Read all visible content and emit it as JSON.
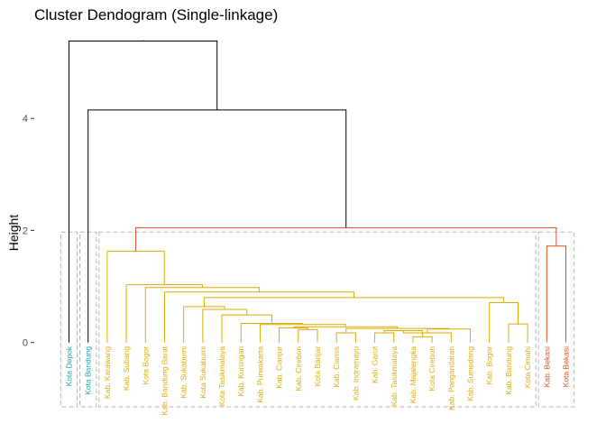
{
  "chart_data": {
    "type": "dendrogram",
    "title": "Cluster Dendogram (Single-linkage)",
    "xlabel": "",
    "ylabel": "Height",
    "ylim": [
      -1.15,
      5.55
    ],
    "y_ticks": [
      0,
      2,
      4
    ],
    "grid": false,
    "leaves": [
      {
        "label": "Kota Depok",
        "group": "A"
      },
      {
        "label": "Kota Bandung",
        "group": "A"
      },
      {
        "label": "Kab. Karawang",
        "group": "C"
      },
      {
        "label": "Kab. Subang",
        "group": "C"
      },
      {
        "label": "Kota Bogor",
        "group": "C"
      },
      {
        "label": "Kab. Bandung Barat",
        "group": "C"
      },
      {
        "label": "Kab. Sukabumi",
        "group": "C"
      },
      {
        "label": "Kota Sukabumi",
        "group": "C"
      },
      {
        "label": "Kota Tasikmalaya",
        "group": "C"
      },
      {
        "label": "Kab. Kuningan",
        "group": "C"
      },
      {
        "label": "Kab. Purwakarta",
        "group": "C"
      },
      {
        "label": "Kab. Cianjur",
        "group": "C"
      },
      {
        "label": "Kab. Cirebon",
        "group": "C"
      },
      {
        "label": "Kota Banjar",
        "group": "C"
      },
      {
        "label": "Kab. Ciamis",
        "group": "C"
      },
      {
        "label": "Kab. Indramayu",
        "group": "C"
      },
      {
        "label": "Kab. Garut",
        "group": "C"
      },
      {
        "label": "Kab. Tasikmalaya",
        "group": "C"
      },
      {
        "label": "Kab. Majalengka",
        "group": "C"
      },
      {
        "label": "Kota Cirebon",
        "group": "C"
      },
      {
        "label": "Kab. Pangandaran",
        "group": "C"
      },
      {
        "label": "Kab. Sumedang",
        "group": "C"
      },
      {
        "label": "Kab. Bogor",
        "group": "C"
      },
      {
        "label": "Kab. Bandung",
        "group": "C"
      },
      {
        "label": "Kota Cimahi",
        "group": "C"
      },
      {
        "label": "Kab. Bekasi",
        "group": "D"
      },
      {
        "label": "Kota Bekasi",
        "group": "D"
      }
    ],
    "merges": [
      {
        "id": "m1",
        "left": "Kab. Ciamis",
        "right": "Kab. Indramayu",
        "height": 0.17,
        "group": "C"
      },
      {
        "id": "m2",
        "left": "Kab. Majalengka",
        "right": "Kota Cirebon",
        "height": 0.1,
        "group": "C"
      },
      {
        "id": "m3",
        "left": "Kab. Garut",
        "right": "Kab. Tasikmalaya",
        "height": 0.17,
        "group": "C"
      },
      {
        "id": "m4",
        "left": "m3",
        "right": "m2",
        "height": 0.21,
        "group": "C"
      },
      {
        "id": "m5",
        "left": "m4",
        "right": "Kab. Pangandaran",
        "height": 0.17,
        "group": "C"
      },
      {
        "id": "m6",
        "left": "m5",
        "right": "Kab. Sumedang",
        "height": 0.24,
        "group": "C"
      },
      {
        "id": "m7",
        "left": "m1",
        "right": "m6",
        "height": 0.25,
        "group": "C"
      },
      {
        "id": "m8",
        "left": "Kab. Cirebon",
        "right": "Kota Banjar",
        "height": 0.23,
        "group": "C"
      },
      {
        "id": "m9",
        "left": "Kab. Cianjur",
        "right": "m8",
        "height": 0.26,
        "group": "C"
      },
      {
        "id": "m10",
        "left": "m9",
        "right": "m7",
        "height": 0.28,
        "group": "C"
      },
      {
        "id": "m11",
        "left": "Kab. Purwakarta",
        "right": "m10",
        "height": 0.32,
        "group": "C"
      },
      {
        "id": "m12",
        "left": "Kab. Kuningan",
        "right": "m11",
        "height": 0.34,
        "group": "C"
      },
      {
        "id": "m13",
        "left": "Kota Tasikmalaya",
        "right": "m12",
        "height": 0.49,
        "group": "C"
      },
      {
        "id": "m14",
        "left": "Kota Sukabumi",
        "right": "m13",
        "height": 0.59,
        "group": "C"
      },
      {
        "id": "m15",
        "left": "Kab. Sukabumi",
        "right": "m14",
        "height": 0.64,
        "group": "C"
      },
      {
        "id": "m16",
        "left": "Kab. Bandung",
        "right": "Kota Cimahi",
        "height": 0.33,
        "group": "C"
      },
      {
        "id": "m17",
        "left": "Kab. Bogor",
        "right": "m16",
        "height": 0.71,
        "group": "C"
      },
      {
        "id": "m18",
        "left": "m15",
        "right": "m17",
        "height": 0.8,
        "group": "C"
      },
      {
        "id": "m19",
        "left": "Kab. Bandung Barat",
        "right": "m18",
        "height": 0.9,
        "group": "C"
      },
      {
        "id": "m20",
        "left": "Kota Bogor",
        "right": "m19",
        "height": 0.98,
        "group": "C"
      },
      {
        "id": "m21",
        "left": "Kab. Subang",
        "right": "m20",
        "height": 1.03,
        "group": "C"
      },
      {
        "id": "m22",
        "left": "Kab. Karawang",
        "right": "m21",
        "height": 1.63,
        "group": "C"
      },
      {
        "id": "m23",
        "left": "Kab. Bekasi",
        "right": "Kota Bekasi",
        "height": 1.72,
        "group": "D"
      },
      {
        "id": "m24",
        "left": "m22",
        "right": "m23",
        "height": 2.05,
        "group": "D"
      },
      {
        "id": "m25",
        "left": "Kota Bandung",
        "right": "m24",
        "height": 4.15,
        "group": "B"
      },
      {
        "id": "m26",
        "left": "Kota Depok",
        "right": "m25",
        "height": 5.38,
        "group": "B"
      }
    ],
    "link_colors": {
      "A": "#16a5b3",
      "C": "#ddaa00",
      "D": "#d9501f",
      "B": "#000000"
    },
    "box_color": "#b3b3b3",
    "cluster_boxes": [
      {
        "first": "Kota Depok",
        "last": "Kota Depok"
      },
      {
        "first": "Kota Bandung",
        "last": "Kota Bandung"
      },
      {
        "first": "Kab. Karawang",
        "last": "Kota Cimahi"
      },
      {
        "first": "Kab. Bekasi",
        "last": "Kota Bekasi"
      }
    ]
  }
}
